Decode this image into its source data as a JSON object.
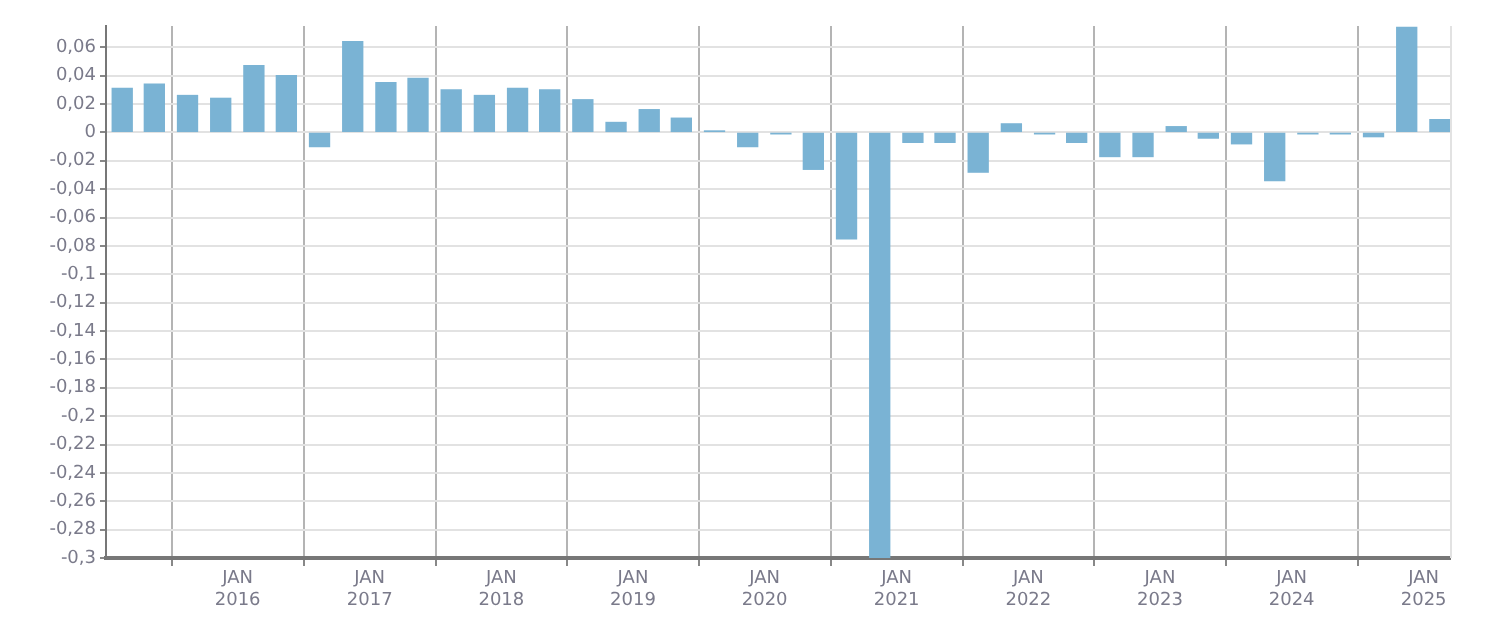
{
  "chart_data": {
    "type": "bar",
    "x": [
      "2015-02-15",
      "2015-05-15",
      "2015-08-15",
      "2015-11-15",
      "2016-02-15",
      "2016-05-15",
      "2016-08-15",
      "2016-11-15",
      "2017-02-15",
      "2017-05-15",
      "2017-08-15",
      "2017-11-15",
      "2018-02-15",
      "2018-05-15",
      "2018-08-15",
      "2018-11-15",
      "2019-02-15",
      "2019-05-15",
      "2019-08-15",
      "2019-11-15",
      "2020-02-15",
      "2020-05-15",
      "2020-08-15",
      "2020-11-15",
      "2021-02-15",
      "2021-05-15",
      "2021-08-15",
      "2021-11-15",
      "2022-02-15",
      "2022-05-15",
      "2022-08-15",
      "2022-11-15",
      "2023-02-15",
      "2023-05-15",
      "2023-08-15",
      "2023-11-15",
      "2024-02-15",
      "2024-05-15",
      "2024-08-15",
      "2024-11-15",
      "2025-02-15"
    ],
    "series": [
      {
        "color": "#7ab3d4",
        "values": [
          0.031,
          0.034,
          0.026,
          0.024,
          0.047,
          0.04,
          -0.01,
          0.064,
          0.035,
          0.038,
          0.03,
          0.026,
          0.031,
          0.03,
          0.023,
          0.007,
          0.016,
          0.01,
          0.001,
          -0.01,
          -0.001,
          -0.026,
          -0.075,
          -0.3,
          -0.007,
          -0.007,
          -0.028,
          0.006,
          -0.001,
          -0.007,
          -0.017,
          -0.017,
          0.004,
          -0.004,
          -0.008,
          -0.034,
          -0.001,
          -0.001,
          -0.003,
          0.074,
          0.009
        ]
      }
    ],
    "xlim": [
      "2015-01-01",
      "2025-03-15"
    ],
    "xticks": [
      {
        "value": "2016-01-01",
        "label": "JAN 2016"
      },
      {
        "value": "2017-01-01",
        "label": "JAN 2017"
      },
      {
        "value": "2018-01-01",
        "label": "JAN 2018"
      },
      {
        "value": "2019-01-01",
        "label": "JAN 2019"
      },
      {
        "value": "2020-01-01",
        "label": "JAN 2020"
      },
      {
        "value": "2021-01-01",
        "label": "JAN 2021"
      },
      {
        "value": "2022-01-01",
        "label": "JAN 2022"
      },
      {
        "value": "2023-01-01",
        "label": "JAN 2023"
      },
      {
        "value": "2024-01-01",
        "label": "JAN 2024"
      },
      {
        "value": "2025-01-01",
        "label": "JAN 2025"
      }
    ],
    "ylim": [
      -0.3,
      0.075
    ],
    "yticks": [
      {
        "value": 0.06,
        "label": "0,06"
      },
      {
        "value": 0.04,
        "label": "0,04"
      },
      {
        "value": 0.02,
        "label": "0,02"
      },
      0,
      {
        "value": -0.02,
        "label": "-0,02"
      },
      {
        "value": -0.04,
        "label": "-0,04"
      },
      {
        "value": -0.06,
        "label": "-0,06"
      },
      {
        "value": -0.08,
        "label": "-0,08"
      },
      {
        "value": -0.1,
        "label": "-0,1"
      },
      {
        "value": -0.12,
        "label": "-0,12"
      },
      {
        "value": -0.14,
        "label": "-0,14"
      },
      {
        "value": -0.16,
        "label": "-0,16"
      },
      {
        "value": -0.18,
        "label": "-0,18"
      },
      {
        "value": -0.2,
        "label": "-0,2"
      },
      {
        "value": -0.22,
        "label": "-0,22"
      },
      {
        "value": -0.24,
        "label": "-0,24"
      },
      {
        "value": -0.26,
        "label": "-0,26"
      },
      {
        "value": -0.28,
        "label": "-0,28"
      },
      {
        "value": -0.3,
        "label": "-0,3"
      }
    ],
    "grid": true,
    "legend": false
  }
}
